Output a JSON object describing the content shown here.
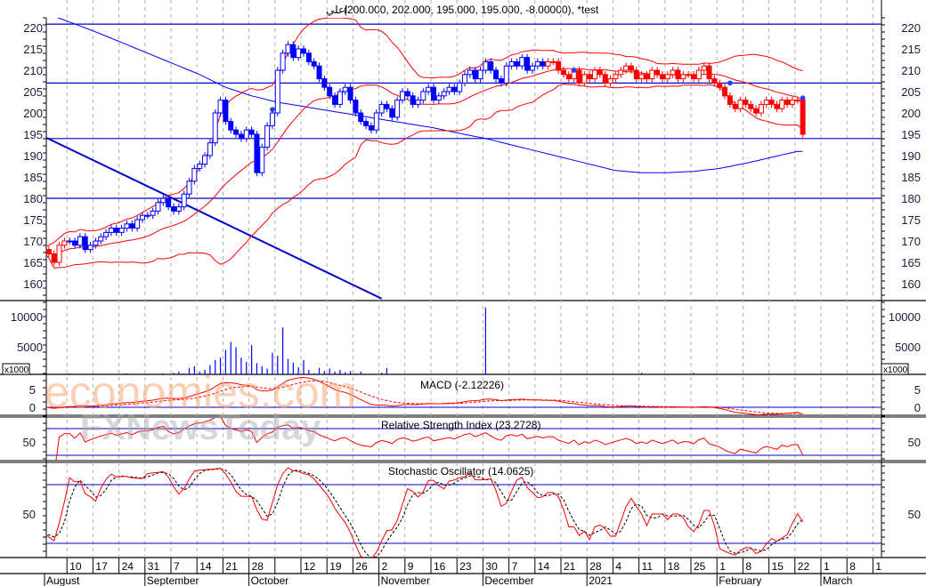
{
  "header": {
    "symbol_arabic": "اعلي",
    "quote": "(200.000, 202.000, 195.000, 195.000, -8.00000), *test"
  },
  "watermarks": {
    "logo1": "economies.com",
    "logo2": "FXNewsToday"
  },
  "colors": {
    "up": "#0000ff",
    "down": "#ff0000",
    "band": "#ff0000",
    "level": "#0000cc",
    "grid": "#b0b0b0",
    "wm1": "#f7a36b",
    "wm2": "#a8a8a8"
  },
  "panels": {
    "volume_unit": "x1000",
    "macd_label": "MACD (-2.12226)",
    "rsi_label": "Relative Strength Index (23.2728)",
    "stoch_label": "Stochastic Oscillator (14.0625)"
  },
  "axes": {
    "price_ticks": [
      "220",
      "215",
      "210",
      "205",
      "200",
      "195",
      "190",
      "185",
      "180",
      "175",
      "170",
      "165",
      "160"
    ],
    "volume_ticks": [
      "10000",
      "5000"
    ],
    "macd_ticks": [
      "5",
      "0"
    ],
    "rsi_ticks": [
      "50"
    ],
    "stoch_ticks": [
      "50"
    ],
    "day_labels": [
      "10",
      "17",
      "24",
      "31",
      "7",
      "14",
      "21",
      "28",
      "",
      "12",
      "19",
      "26",
      "2",
      "9",
      "16",
      "23",
      "30",
      "7",
      "14",
      "21",
      "28",
      "4",
      "11",
      "18",
      "25",
      "1",
      "8",
      "15",
      "22",
      "1",
      "8",
      "1"
    ],
    "months": [
      {
        "label": "August",
        "week": 0
      },
      {
        "label": "September",
        "week": 4
      },
      {
        "label": "October",
        "week": 8
      },
      {
        "label": "November",
        "week": 13
      },
      {
        "label": "December",
        "week": 17
      },
      {
        "label": "2021",
        "week": 21
      },
      {
        "label": "February",
        "week": 26
      },
      {
        "label": "March",
        "week": 30
      }
    ]
  },
  "chart_data": {
    "type": "candlestick",
    "title": "اعلي (200.000, 202.000, 195.000, 195.000, -8.00000), *test",
    "start_date": "Aug 3",
    "end_date": "Feb 23",
    "ylim": [
      156.5,
      223
    ],
    "close": [
      168,
      167,
      165,
      169,
      170,
      170,
      169,
      171,
      168,
      169,
      170,
      171,
      172,
      173,
      172,
      173,
      174,
      173,
      175,
      176,
      176,
      177,
      179,
      180,
      178,
      177,
      178,
      181,
      184,
      187,
      188,
      190,
      193,
      200,
      203,
      198,
      196,
      195,
      194,
      196,
      195,
      186,
      192,
      197,
      200,
      210,
      214,
      216,
      213,
      215,
      214,
      212,
      211,
      208,
      206,
      204,
      202,
      205,
      206,
      203,
      200,
      198,
      197,
      196,
      200,
      202,
      201,
      199,
      203,
      205,
      204,
      202,
      203,
      205,
      206,
      203,
      204,
      205,
      206,
      205,
      207,
      209,
      210,
      208,
      210,
      212,
      210,
      208,
      207,
      211,
      212,
      211,
      213,
      210,
      211,
      212,
      211,
      212,
      212,
      210,
      209,
      208,
      210,
      207,
      209,
      208,
      210,
      209,
      207,
      208,
      209,
      210,
      211,
      210,
      208,
      209,
      208,
      210,
      209,
      208,
      209,
      210,
      208,
      209,
      209,
      208,
      210,
      211,
      208,
      207,
      206,
      204,
      202,
      201,
      203,
      202,
      201,
      200,
      202,
      203,
      202,
      201,
      203,
      202,
      203,
      203,
      195
    ],
    "volume": [
      400,
      200,
      300,
      150,
      200,
      600,
      200,
      300,
      500,
      200,
      300,
      250,
      400,
      200,
      150,
      300,
      600,
      200,
      500,
      300,
      400,
      350,
      300,
      600,
      500,
      700,
      900,
      600,
      1500,
      1800,
      900,
      1200,
      2000,
      2800,
      3200,
      4500,
      5800,
      4900,
      3200,
      2500,
      5300,
      2300,
      1800,
      1400,
      4000,
      3500,
      8200,
      3000,
      2400,
      1600,
      2800,
      1200,
      600,
      1500,
      1000,
      1400,
      900,
      1200,
      800,
      1000,
      600,
      900,
      400,
      500,
      300,
      700,
      1500,
      300,
      200,
      400,
      200,
      300,
      250,
      200,
      300,
      200,
      250,
      300,
      200,
      150,
      250,
      300,
      200,
      350,
      200,
      11500,
      400,
      300,
      200,
      300,
      200,
      150,
      250,
      200,
      150,
      200,
      150,
      200,
      100,
      150,
      150,
      100,
      150,
      200,
      100,
      150,
      100,
      200,
      150,
      100,
      200,
      150,
      300,
      150,
      200,
      700,
      200,
      150,
      100,
      150,
      150,
      200,
      100,
      150,
      100,
      700,
      200,
      150,
      300,
      200,
      150,
      200,
      300,
      200,
      150,
      150,
      200,
      100,
      150,
      200,
      200,
      150,
      100,
      150,
      200,
      200,
      400
    ],
    "ma_long_weekly": [
      223.5,
      221.3,
      219,
      216.5,
      214,
      211.5,
      209,
      206,
      204,
      202.5,
      201.5,
      200.5,
      199.5,
      198.5,
      197.5,
      196.5,
      195.2,
      194,
      192.5,
      191,
      189.5,
      188,
      186.5,
      186,
      186,
      186.3,
      187,
      188.2,
      189.6,
      191
    ],
    "trendline": {
      "from_index": 0,
      "from_price": 194.2,
      "to_index": 65,
      "to_price": 156.5
    },
    "levels": [
      220.8,
      207,
      194,
      180
    ],
    "markers": [
      {
        "index": 44,
        "price": 200.8
      },
      {
        "index": 102,
        "price": 210
      },
      {
        "index": 132,
        "price": 207
      },
      {
        "index": 146,
        "price": 203.5
      }
    ],
    "blue_range": [
      5,
      96
    ],
    "indicators": {
      "bollinger": [
        20,
        2
      ],
      "macd": [
        12,
        26,
        9
      ],
      "rsi": 14,
      "stochastic": [
        14,
        3,
        3
      ]
    }
  }
}
